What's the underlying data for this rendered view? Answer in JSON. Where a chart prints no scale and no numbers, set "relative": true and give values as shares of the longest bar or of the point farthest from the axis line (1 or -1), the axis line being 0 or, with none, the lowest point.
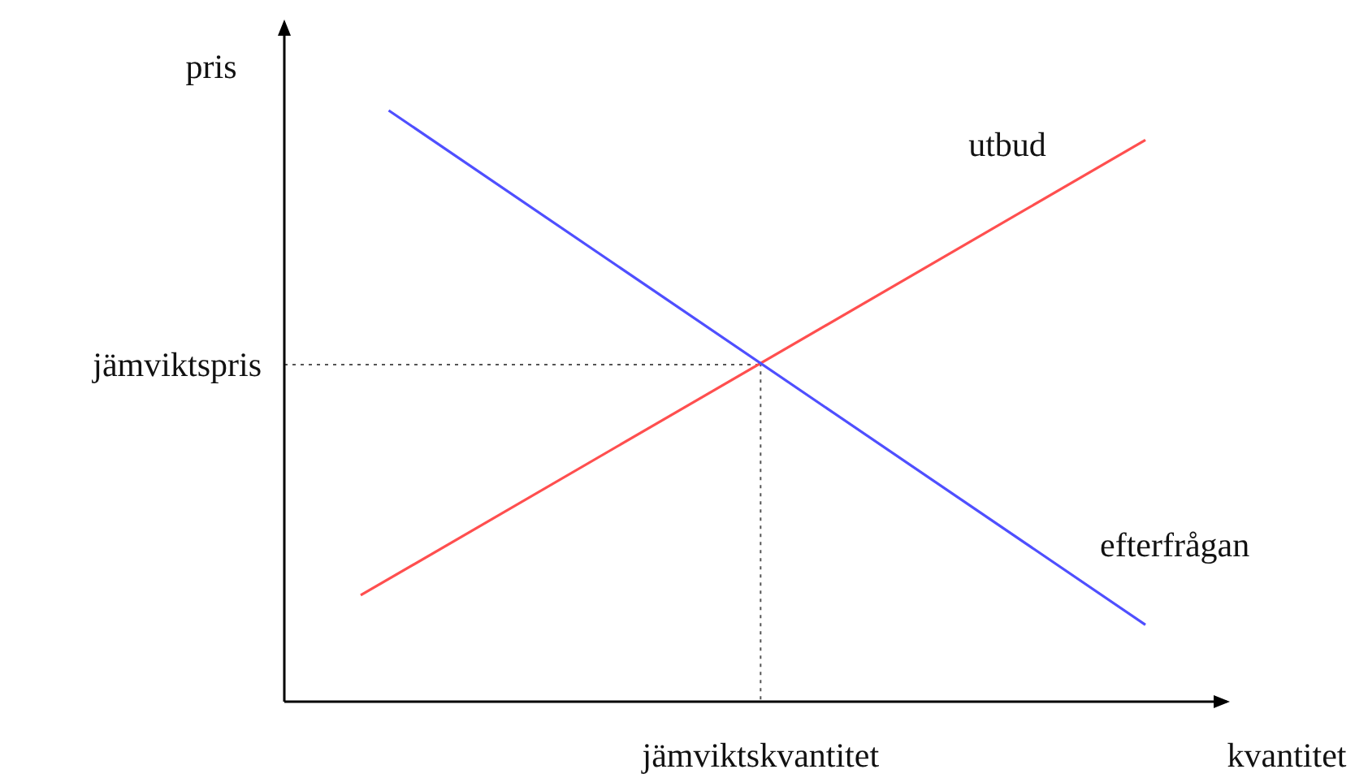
{
  "chart_data": {
    "type": "line",
    "relative": true,
    "xlabel": "kvantitet",
    "ylabel": "pris",
    "marker": "none",
    "line_style": "solid",
    "categories": [
      null,
      null,
      null,
      null,
      null,
      null,
      null,
      null,
      null,
      null,
      null,
      null,
      null,
      null,
      null,
      null,
      null,
      null,
      null,
      null,
      null,
      null,
      null,
      null,
      null,
      null,
      null,
      null,
      null
    ],
    "series": [
      {
        "name": "utbud",
        "color": "#ff4f4f",
        "values": [
          0.18,
          null,
          null,
          null,
          null,
          null,
          null,
          null,
          null,
          null,
          null,
          null,
          null,
          null,
          null,
          null,
          null,
          null,
          null,
          null,
          null,
          null,
          null,
          null,
          null,
          null,
          null,
          null,
          0.95
        ]
      },
      {
        "name": "efterfrågan",
        "color": "#4f4fff",
        "values": [
          null,
          1,
          null,
          null,
          null,
          null,
          null,
          null,
          null,
          null,
          null,
          null,
          null,
          null,
          null,
          null,
          null,
          null,
          null,
          null,
          null,
          null,
          null,
          null,
          null,
          null,
          null,
          null,
          0.13
        ]
      }
    ],
    "ref_lines": [
      {
        "axis": "y",
        "value": 0.57,
        "label": "jämviktspris",
        "color": "#555555",
        "line_style": "dotted"
      }
    ],
    "annotations": [
      "jämviktskvantitet"
    ]
  }
}
